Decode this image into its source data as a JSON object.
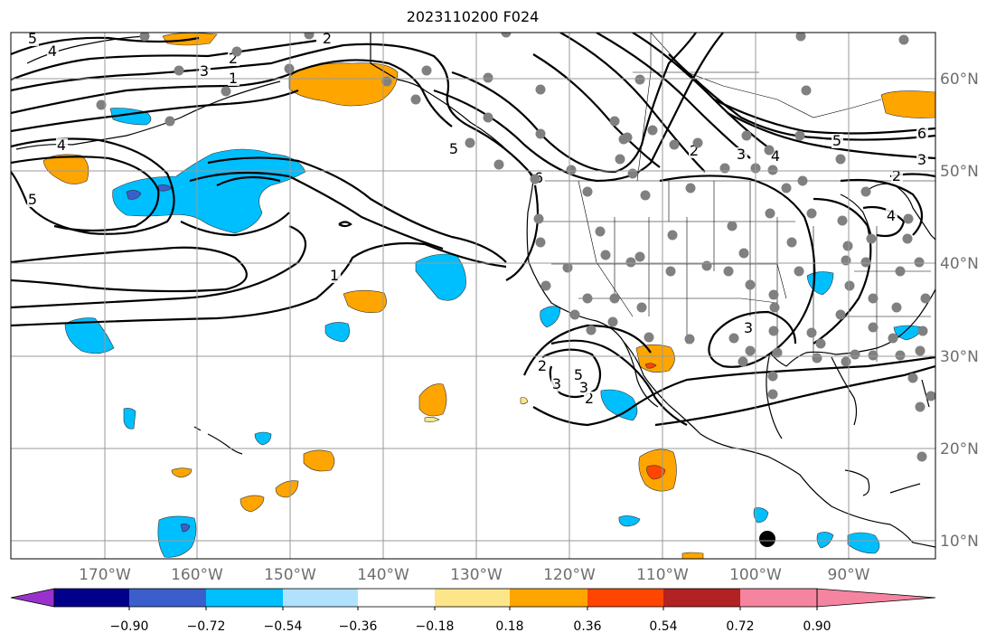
{
  "title": "2023110200 F024",
  "lon_labels": [
    "170°W",
    "160°W",
    "150°W",
    "140°W",
    "130°W",
    "120°W",
    "110°W",
    "100°W",
    "90°W"
  ],
  "lat_labels": [
    "10°N",
    "20°N",
    "30°N",
    "40°N",
    "50°N",
    "60°N"
  ],
  "colorbar": {
    "tick_labels": [
      "−0.90",
      "−0.72",
      "−0.54",
      "−0.36",
      "−0.18",
      "0.18",
      "0.36",
      "0.54",
      "0.72",
      "0.90"
    ],
    "colors": [
      "#9932cc",
      "#00008b",
      "#3a5fcd",
      "#00bfff",
      "#b0e2ff",
      "#ffffff",
      "#fde68a",
      "#ffa500",
      "#ff4500",
      "#b22222",
      "#f4849f"
    ]
  },
  "contour_labels": [
    "5",
    "4",
    "3",
    "2",
    "1",
    "4",
    "5",
    "6",
    "5",
    "1",
    "3",
    "2",
    "5",
    "3",
    "2",
    "6",
    "3",
    "2",
    "4",
    "5",
    "3",
    "4",
    "2",
    "2",
    "3"
  ],
  "colors": {
    "orange": "#ffa500",
    "light_orange": "#fde68a",
    "blue": "#00bfff",
    "dark_blue": "#3a5fcd",
    "red": "#ff4500",
    "station": "#808080"
  }
}
